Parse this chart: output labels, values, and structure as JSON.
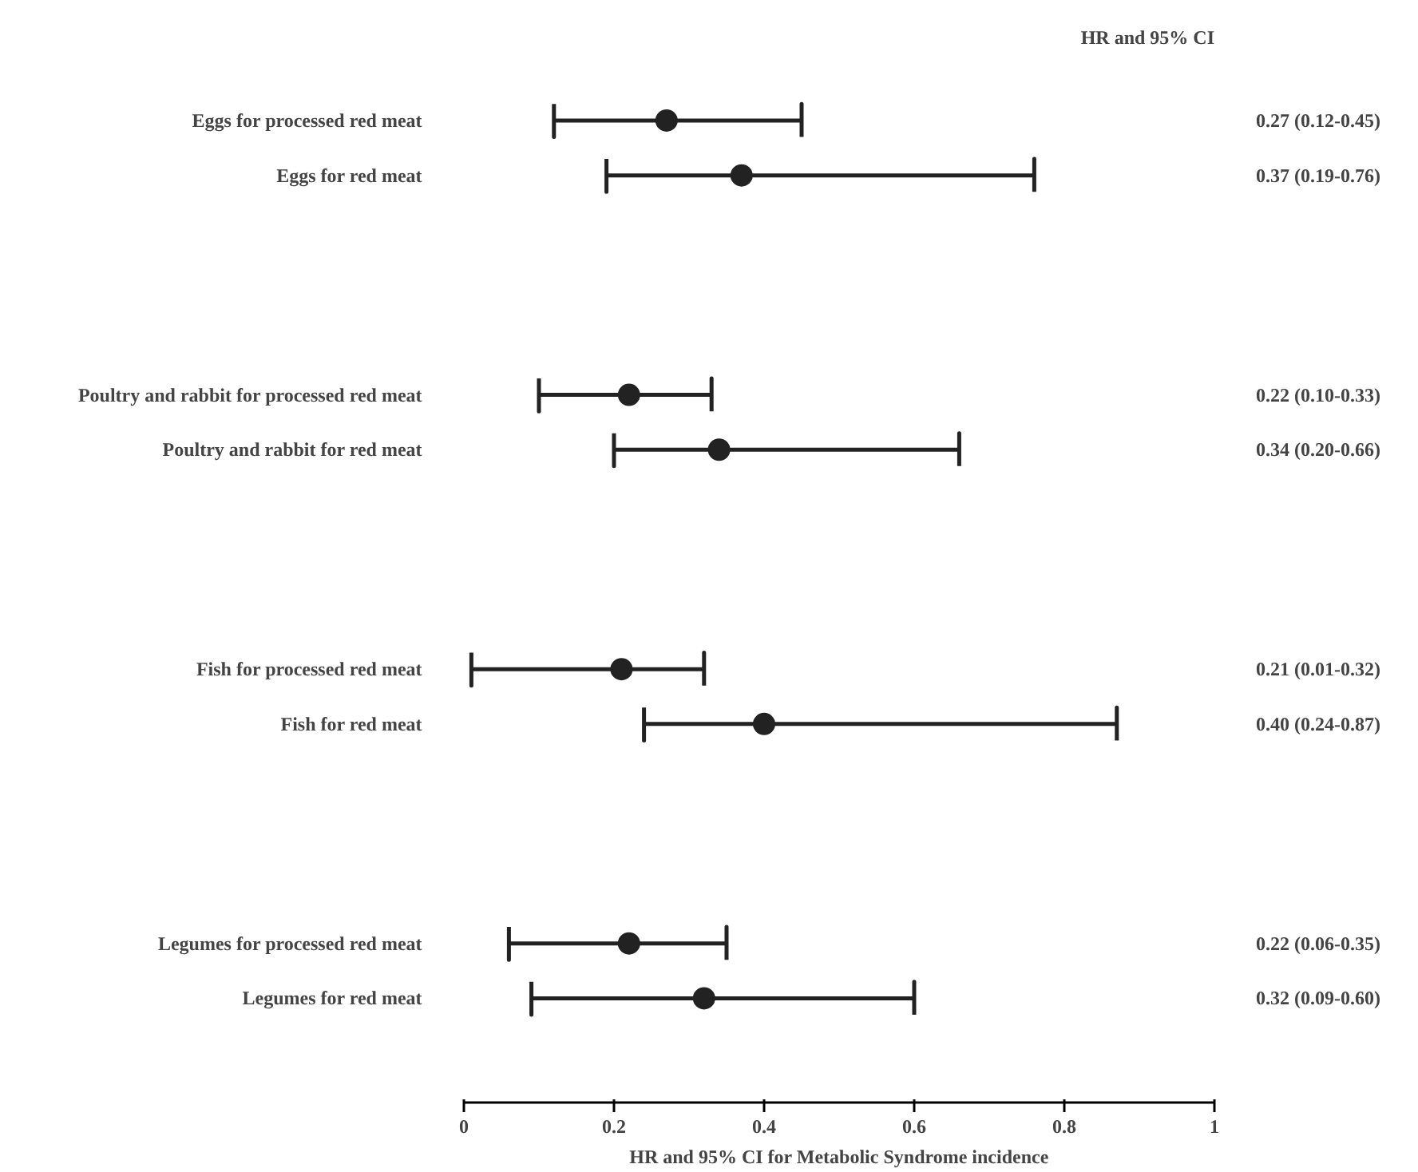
{
  "chart_data": {
    "type": "scatter",
    "orientation": "horizontal",
    "categories": [
      "Eggs for processed red meat",
      "Eggs for red meat",
      null,
      null,
      null,
      "Poultry and rabbit for processed red meat",
      "Poultry and rabbit for red meat",
      null,
      null,
      null,
      "Fish for processed red meat",
      "Fish for red meat",
      null,
      null,
      null,
      "Legumes for processed red meat",
      "Legumes for red meat"
    ],
    "values": [
      0.27,
      0.37,
      null,
      null,
      null,
      0.22,
      0.34,
      null,
      null,
      null,
      0.21,
      0.4,
      null,
      null,
      null,
      0.22,
      0.32
    ],
    "errors": [
      [
        0.12,
        0.45
      ],
      [
        0.19,
        0.76
      ],
      null,
      null,
      null,
      [
        0.1,
        0.33
      ],
      [
        0.2,
        0.66
      ],
      null,
      null,
      null,
      [
        0.01,
        0.32
      ],
      [
        0.24,
        0.87
      ],
      null,
      null,
      null,
      [
        0.06,
        0.35
      ],
      [
        0.09,
        0.6
      ]
    ],
    "value_labels": [
      "0.27 (0.12-0.45)",
      "0.37 (0.19-0.76)",
      null,
      null,
      null,
      "0.22 (0.10-0.33)",
      "0.34 (0.20-0.66)",
      null,
      null,
      null,
      "0.21 (0.01-0.32)",
      "0.40 (0.24-0.87)",
      null,
      null,
      null,
      "0.22 (0.06-0.35)",
      "0.32 (0.09-0.60)"
    ],
    "color": "#222222",
    "marker": "circle",
    "xlim": [
      0,
      1
    ],
    "xticks": [
      0,
      0.2,
      0.4,
      0.6,
      0.8,
      1
    ],
    "xlabel": "HR and 95% CI for Metabolic Syndrome incidence",
    "annotations": [
      "HR and 95% CI"
    ]
  }
}
